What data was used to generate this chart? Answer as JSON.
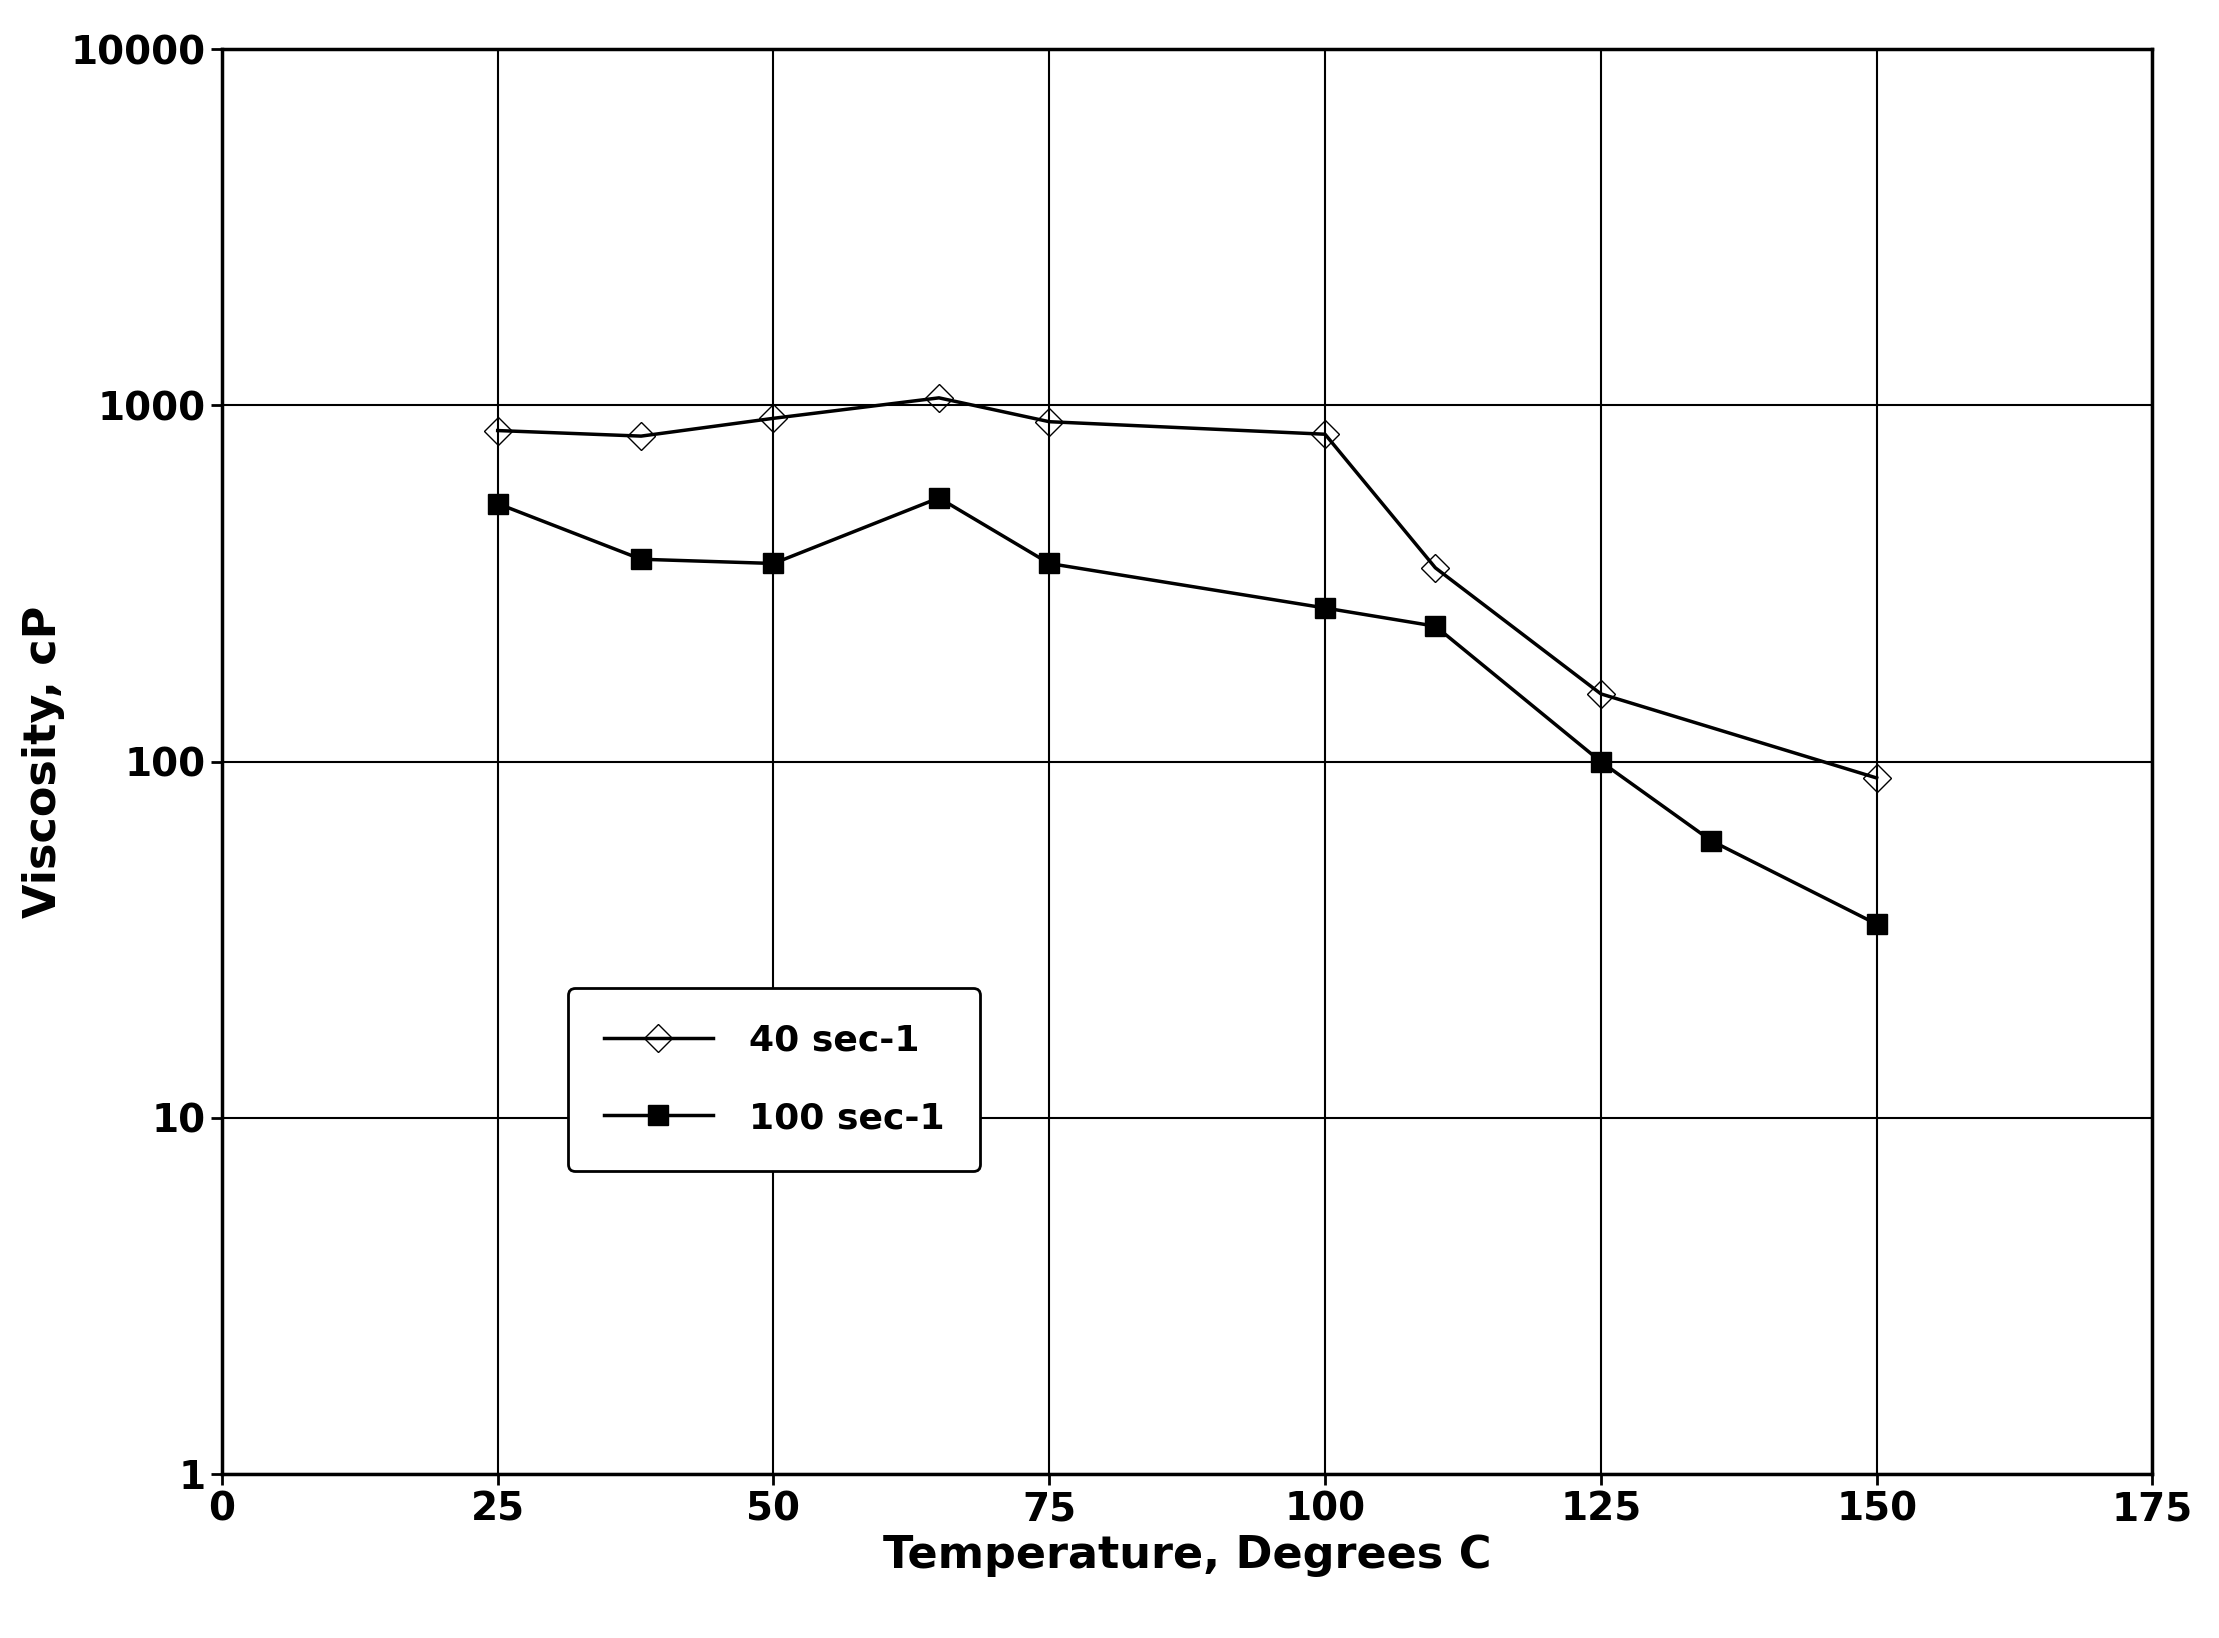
{
  "series1": {
    "label": "40 sec-1",
    "x": [
      25,
      38,
      50,
      65,
      75,
      100,
      110,
      125,
      150
    ],
    "y": [
      850,
      820,
      920,
      1050,
      900,
      830,
      350,
      155,
      90
    ],
    "marker": "D",
    "color": "#000000",
    "fillstyle": "none",
    "markersize": 14,
    "linewidth": 2.5
  },
  "series2": {
    "label": "100 sec-1",
    "x": [
      25,
      38,
      50,
      65,
      75,
      100,
      110,
      125,
      135,
      150
    ],
    "y": [
      530,
      370,
      360,
      550,
      360,
      270,
      240,
      100,
      60,
      35
    ],
    "marker": "s",
    "color": "#000000",
    "fillstyle": "full",
    "markersize": 14,
    "linewidth": 2.5
  },
  "xlabel": "Temperature, Degrees C",
  "ylabel": "Viscosity, cP",
  "xlim": [
    0,
    175
  ],
  "xticks": [
    0,
    25,
    50,
    75,
    100,
    125,
    150,
    175
  ],
  "yticks": [
    1,
    10,
    100,
    1000,
    10000
  ],
  "ytick_labels": [
    "1",
    "10",
    "100",
    "1000",
    "10000"
  ],
  "ylim": [
    1,
    10000
  ],
  "background_color": "#ffffff",
  "grid_color": "#000000",
  "xlabel_fontsize": 32,
  "ylabel_fontsize": 32,
  "tick_fontsize": 28,
  "legend_fontsize": 26
}
